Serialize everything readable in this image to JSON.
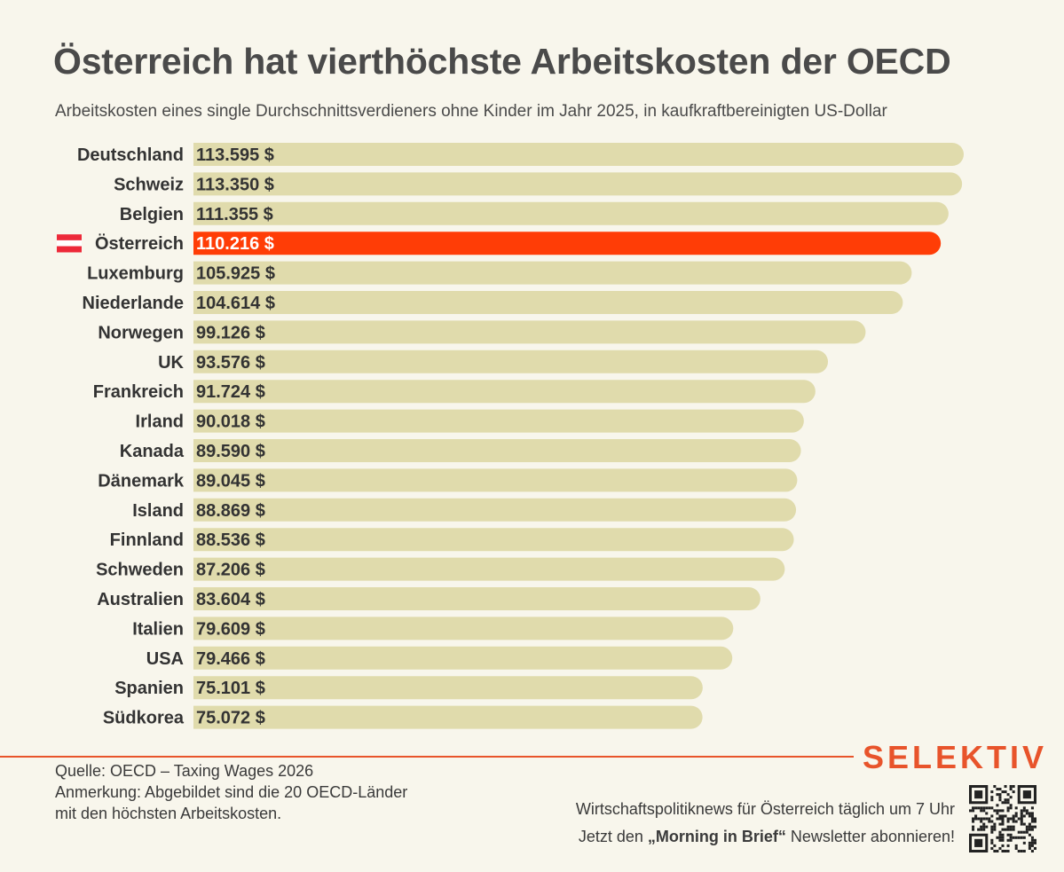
{
  "header": {
    "title": "Österreich hat vierthöchste Arbeitskosten der OECD",
    "subtitle": "Arbeitskosten eines single Durchschnittsverdieners ohne Kinder im Jahr 2025, in kaufkraftbereinigten US-Dollar"
  },
  "chart_data": {
    "type": "bar",
    "orientation": "horizontal",
    "categories": [
      "Deutschland",
      "Schweiz",
      "Belgien",
      "Österreich",
      "Luxemburg",
      "Niederlande",
      "Norwegen",
      "UK",
      "Frankreich",
      "Irland",
      "Kanada",
      "Dänemark",
      "Island",
      "Finnland",
      "Schweden",
      "Australien",
      "Italien",
      "USA",
      "Spanien",
      "Südkorea"
    ],
    "values": [
      113595,
      113350,
      111355,
      110216,
      105925,
      104614,
      99126,
      93576,
      91724,
      90018,
      89590,
      89045,
      88869,
      88536,
      87206,
      83604,
      79609,
      79466,
      75101,
      75072
    ],
    "value_labels": [
      "113.595 $",
      "113.350 $",
      "111.355 $",
      "110.216 $",
      "105.925 $",
      "104.614 $",
      "99.126 $",
      "93.576 $",
      "91.724 $",
      "90.018 $",
      "89.590 $",
      "89.045 $",
      "88.869 $",
      "88.536 $",
      "87.206 $",
      "83.604 $",
      "79.609 $",
      "79.466 $",
      "75.101 $",
      "75.072 $"
    ],
    "highlight_category": "Österreich",
    "highlight_flag": "austria-flag-icon",
    "colors": {
      "bar": "#e0dbac",
      "highlight": "#ff3d06",
      "label": "#333333",
      "highlight_label": "#ffffff"
    }
  },
  "footer": {
    "source": "Quelle: OECD – Taxing Wages 2026",
    "note_line1": "Anmerkung: Abgebildet sind die 20 OECD-Länder",
    "note_line2": "mit den höchsten Arbeitskosten.",
    "brand": "SELEKTIV",
    "promo_line1": "Wirtschaftspolitiknews für Österreich täglich um 7 Uhr",
    "promo_prefix": "Jetzt den ",
    "promo_bold": "„Morning in Brief“",
    "promo_suffix": " Newsletter abonnieren!",
    "qr_icon": "qr-code-icon"
  },
  "colors": {
    "background": "#f8f6ec",
    "accent": "#e8542b"
  }
}
